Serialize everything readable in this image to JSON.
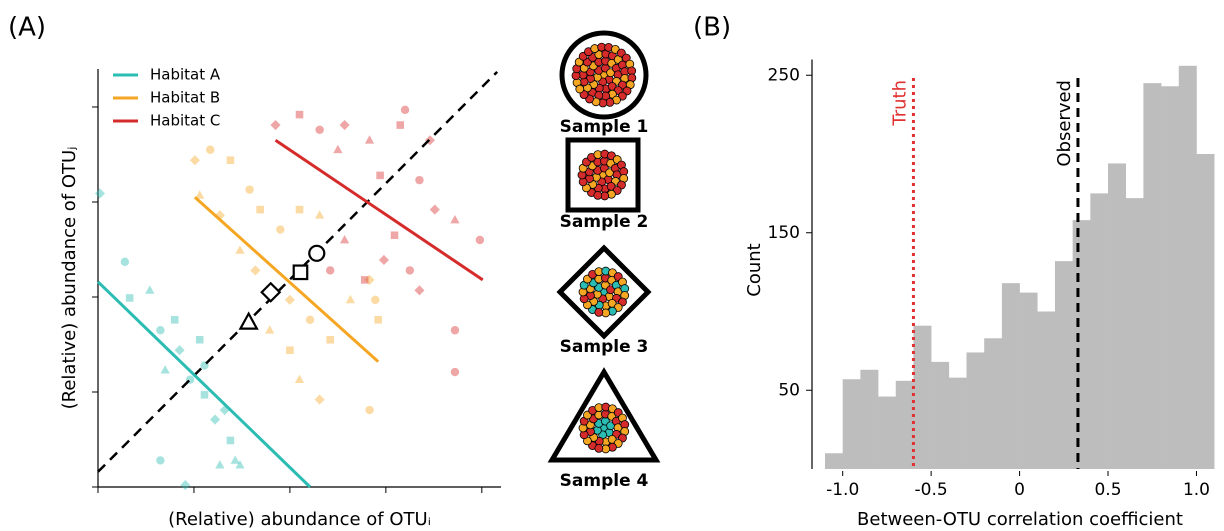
{
  "panel_labels": [
    "(A)",
    "(B)"
  ],
  "chart_data": [
    {
      "type": "scatter",
      "xlabel": "(Relative) abundance of OTUᵢ",
      "ylabel": "(Relative) abundance of OTUⱼ",
      "xlim": [
        0,
        4.2
      ],
      "ylim": [
        0,
        4.4
      ],
      "xticks": [
        0,
        1,
        2,
        3,
        4
      ],
      "yticks": [
        0,
        1,
        2,
        3,
        4
      ],
      "series": [
        {
          "name": "Habitat A",
          "color": "#2bbcb3",
          "x": [
            0.02,
            0.28,
            0.33,
            0.54,
            0.65,
            0.8,
            0.85,
            0.7,
            0.96,
            1.11,
            1.22,
            1.27,
            0.65,
            1.38,
            0.91,
            1.48,
            1.11,
            1.06,
            1.32,
            1.43
          ],
          "values": [
            3.09,
            2.37,
            1.99,
            2.07,
            1.65,
            1.76,
            1.44,
            1.23,
            1.13,
            0.97,
            0.71,
            0.23,
            0.28,
            0.49,
            0.02,
            0.23,
            1.28,
            1.55,
            0.81,
            0.28
          ],
          "markers": [
            "D",
            "o",
            "s",
            "^",
            "o",
            "s",
            "D",
            "^",
            "o",
            "s",
            "D",
            "^",
            "o",
            "s",
            "D",
            "^",
            "o",
            "s",
            "D",
            "^"
          ],
          "fit": {
            "x": [
              0,
              2.21
            ],
            "values": [
              2.16,
              0
            ]
          }
        },
        {
          "name": "Habitat B",
          "color": "#f5a623",
          "x": [
            1.01,
            1.17,
            1.38,
            1.06,
            1.27,
            1.58,
            1.69,
            1.48,
            1.64,
            1.9,
            2.1,
            2.31,
            2.0,
            2.21,
            2.42,
            2.63,
            2.83,
            2.89,
            2.92,
            2.1,
            2.31,
            2.83,
            2.0,
            1.79
          ],
          "values": [
            3.44,
            3.55,
            3.44,
            3.07,
            2.86,
            3.13,
            2.92,
            2.49,
            2.28,
            2.71,
            2.92,
            2.86,
            1.97,
            1.76,
            1.55,
            1.97,
            2.18,
            1.97,
            1.76,
            1.13,
            0.92,
            0.81,
            1.44,
            1.65
          ],
          "markers": [
            "D",
            "o",
            "s",
            "^",
            "D",
            "o",
            "s",
            "^",
            "D",
            "o",
            "s",
            "^",
            "D",
            "o",
            "s",
            "^",
            "D",
            "o",
            "s",
            "^",
            "D",
            "o",
            "s",
            "^"
          ],
          "fit": {
            "x": [
              1.01,
              2.92
            ],
            "values": [
              3.05,
              1.32
            ]
          }
        },
        {
          "name": "Habitat C",
          "color": "#d62b2b",
          "x": [
            1.85,
            2.1,
            2.31,
            2.57,
            2.83,
            3.15,
            3.2,
            3.46,
            2.5,
            2.94,
            3.35,
            3.51,
            3.72,
            3.98,
            3.09,
            2.98,
            3.25,
            2.57,
            2.78,
            3.35,
            3.72,
            3.72,
            2.42
          ],
          "values": [
            3.81,
            3.92,
            3.76,
            3.81,
            3.65,
            3.81,
            3.97,
            3.65,
            3.55,
            3.28,
            3.23,
            2.92,
            2.81,
            2.6,
            2.65,
            2.39,
            2.28,
            2.6,
            2.18,
            2.07,
            1.65,
            1.21,
            2.28
          ],
          "markers": [
            "D",
            "s",
            "o",
            "D",
            "^",
            "s",
            "o",
            "D",
            "^",
            "s",
            "o",
            "D",
            "^",
            "o",
            "s",
            "D",
            "o",
            "^",
            "s",
            "D",
            "o",
            "o",
            "o"
          ],
          "fit": {
            "x": [
              1.85,
              4.01
            ],
            "values": [
              3.65,
              2.18
            ]
          }
        }
      ],
      "reference_line": {
        "x": [
          0,
          4.16
        ],
        "values": [
          0.16,
          4.37
        ]
      },
      "samples": [
        {
          "name": "Sample 1",
          "marker": "o",
          "x": 2.28,
          "y": 2.46
        },
        {
          "name": "Sample 2",
          "marker": "s",
          "x": 2.11,
          "y": 2.26
        },
        {
          "name": "Sample 3",
          "marker": "D",
          "x": 1.8,
          "y": 2.05
        },
        {
          "name": "Sample 4",
          "marker": "^",
          "x": 1.57,
          "y": 1.73
        }
      ]
    },
    {
      "type": "histogram",
      "xlabel": "Between-OTU correlation coefficient",
      "ylabel": "Count",
      "color": "#bdbdbd",
      "bins": [
        -1.1,
        -1.0,
        -0.9,
        -0.8,
        -0.7,
        -0.6,
        -0.5,
        -0.4,
        -0.3,
        -0.2,
        -0.1,
        0,
        0.1,
        0.2,
        0.3,
        0.4,
        0.5,
        0.6,
        0.7,
        0.8,
        0.9,
        1.0,
        1.1
      ],
      "counts": [
        10,
        57,
        63,
        46,
        56,
        91,
        68,
        58,
        74,
        83,
        118,
        112,
        100,
        132,
        158,
        175,
        194,
        172,
        245,
        243,
        256,
        200
      ],
      "xlim": [
        -1.1,
        1.15
      ],
      "ylim": [
        0,
        260
      ],
      "xticks": [
        {
          "value": -1,
          "label": "-1.0"
        },
        -0.5,
        0,
        0.5,
        {
          "value": 1,
          "label": "1.0"
        }
      ],
      "yticks": [
        50,
        150,
        250
      ],
      "vlines": [
        {
          "x": -0.6,
          "label": "Truth",
          "color": "#e03030",
          "style": "dotted"
        },
        {
          "x": 0.33,
          "label": "Observed",
          "color": "#000000",
          "style": "dashed"
        }
      ]
    }
  ]
}
